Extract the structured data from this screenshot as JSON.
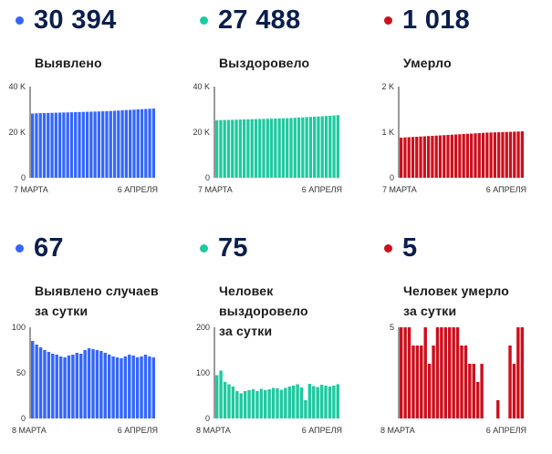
{
  "panels": [
    {
      "number": "30 394",
      "label_lines": [
        "Выявлено"
      ],
      "color": "#3366ff",
      "y_ticks": [
        "40 K",
        "20 K",
        "0"
      ],
      "y_max": 40000,
      "x_start": "7 МАРТА",
      "x_end": "6 АПРЕЛЯ",
      "values": [
        28200,
        28300,
        28350,
        28400,
        28450,
        28500,
        28550,
        28600,
        28650,
        28700,
        28750,
        28800,
        28850,
        28900,
        28950,
        29000,
        29050,
        29100,
        29150,
        29200,
        29300,
        29400,
        29500,
        29600,
        29700,
        29800,
        29900,
        30000,
        30100,
        30200,
        30300,
        30394
      ]
    },
    {
      "number": "27 488",
      "label_lines": [
        "Выздоровело"
      ],
      "color": "#1fc9a0",
      "y_ticks": [
        "40 K",
        "20 K",
        "0"
      ],
      "y_max": 40000,
      "x_start": "7 МАРТА",
      "x_end": "6 АПРЕЛЯ",
      "values": [
        25200,
        25300,
        25350,
        25400,
        25450,
        25500,
        25550,
        25600,
        25650,
        25700,
        25750,
        25800,
        25850,
        25900,
        25950,
        26000,
        26050,
        26100,
        26150,
        26200,
        26300,
        26400,
        26500,
        26600,
        26700,
        26800,
        26900,
        27000,
        27100,
        27200,
        27350,
        27488
      ]
    },
    {
      "number": "1 018",
      "label_lines": [
        "Умерло"
      ],
      "color": "#cc0f1c",
      "y_ticks": [
        "2 K",
        "1 K",
        "0"
      ],
      "y_max": 2000,
      "x_start": "7 МАРТА",
      "x_end": "6 АПРЕЛЯ",
      "values": [
        880,
        885,
        890,
        895,
        900,
        905,
        910,
        915,
        920,
        925,
        930,
        935,
        940,
        945,
        950,
        955,
        960,
        965,
        970,
        975,
        980,
        985,
        990,
        993,
        996,
        999,
        1002,
        1005,
        1008,
        1011,
        1015,
        1018
      ]
    },
    {
      "number": "67",
      "label_lines": [
        "Выявлено случаев",
        "за сутки"
      ],
      "color": "#3366ff",
      "y_ticks": [
        "100",
        "50",
        "0"
      ],
      "y_max": 100,
      "x_start": "8 МАРТА",
      "x_end": "6 АПРЕЛЯ",
      "values": [
        85,
        81,
        78,
        75,
        73,
        71,
        70,
        68,
        67,
        69,
        70,
        72,
        71,
        75,
        77,
        76,
        75,
        74,
        72,
        70,
        68,
        67,
        66,
        68,
        70,
        69,
        67,
        68,
        70,
        68,
        67
      ]
    },
    {
      "number": "75",
      "label_lines": [
        "Человек выздоровело",
        "за сутки"
      ],
      "color": "#1fc9a0",
      "y_ticks": [
        "200",
        "100",
        "0"
      ],
      "y_max": 200,
      "x_start": "8 МАРТА",
      "x_end": "6 АПРЕЛЯ",
      "values": [
        95,
        105,
        80,
        75,
        70,
        60,
        55,
        60,
        62,
        64,
        60,
        65,
        62,
        64,
        67,
        66,
        63,
        67,
        70,
        72,
        75,
        68,
        40,
        76,
        71,
        69,
        74,
        72,
        70,
        72,
        75
      ]
    },
    {
      "number": "5",
      "label_lines": [
        "Человек умерло",
        "за сутки"
      ],
      "color": "#cc0f1c",
      "y_ticks": [
        "5",
        "",
        ""
      ],
      "y_max": 5,
      "x_start": "8 МАРТА",
      "x_end": "6 АПРЕЛЯ",
      "values": [
        5,
        5,
        5,
        4,
        4,
        4,
        5,
        3,
        4,
        5,
        5,
        5,
        5,
        5,
        5,
        4,
        4,
        3,
        3,
        2,
        3,
        0,
        0,
        0,
        1,
        0,
        0,
        4,
        3,
        5,
        5
      ]
    }
  ]
}
